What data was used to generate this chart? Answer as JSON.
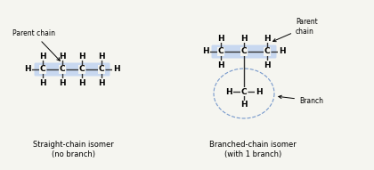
{
  "bg_color": "#f5f5f0",
  "title_left": "Straight-chain isomer\n(no branch)",
  "title_right": "Branched-chain isomer\n(with 1 branch)",
  "label_parent_chain_left": "Parent chain",
  "label_parent_chain_right": "Parent\nchain",
  "label_branch": "Branch",
  "highlight_color": "#c8d8f0",
  "dashed_circle_color": "#7799cc",
  "font_size_atom": 6.5,
  "font_size_label": 5.5,
  "font_size_title": 6.0
}
